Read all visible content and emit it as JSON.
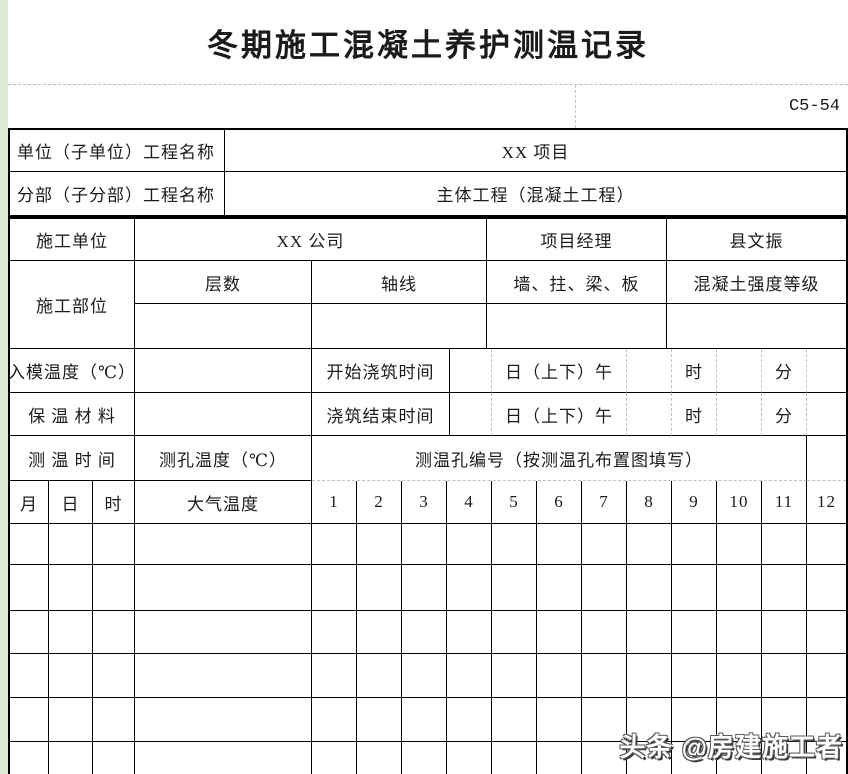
{
  "title": "冬期施工混凝土养护测温记录",
  "form_code": "C5-54",
  "header": {
    "unit_label": "单位（子单位）工程名称",
    "unit_value": "XX 项目",
    "subdivision_label": "分部（子分部）工程名称",
    "subdivision_value": "主体工程（混凝土工程）",
    "contractor_label": "施工单位",
    "contractor_value": "XX 公司",
    "pm_label": "项目经理",
    "pm_value": "县文振"
  },
  "location": {
    "label": "施工部位",
    "floors_label": "层数",
    "axis_label": "轴线",
    "members_label": "墙、拄、梁、板",
    "strength_label": "混凝土强度等级"
  },
  "casting": {
    "mold_temp_label": "入模温度（℃）",
    "insulation_label": "保 温 材 料",
    "start_label": "开始浇筑时间",
    "end_label": "浇筑结束时间",
    "day_ampm_label": "日（上下）午",
    "hour_label": "时",
    "minute_label": "分"
  },
  "grid": {
    "time_label": "测 温 时 间",
    "hole_temp_label": "测孔温度（℃）",
    "holes_header": "测温孔编号（按测温孔布置图填写）",
    "month_label": "月",
    "day_label": "日",
    "hour_label": "时",
    "air_temp_label": "大气温度",
    "hole_numbers": [
      "1",
      "2",
      "3",
      "4",
      "5",
      "6",
      "7",
      "8",
      "9",
      "10",
      "11",
      "12"
    ],
    "empty_row_count": 6
  },
  "watermark": "头条 @房建施工者",
  "colors": {
    "border": "#000000",
    "dashed_line": "#c0c0c0",
    "page_margin_green": "#dcead6"
  }
}
